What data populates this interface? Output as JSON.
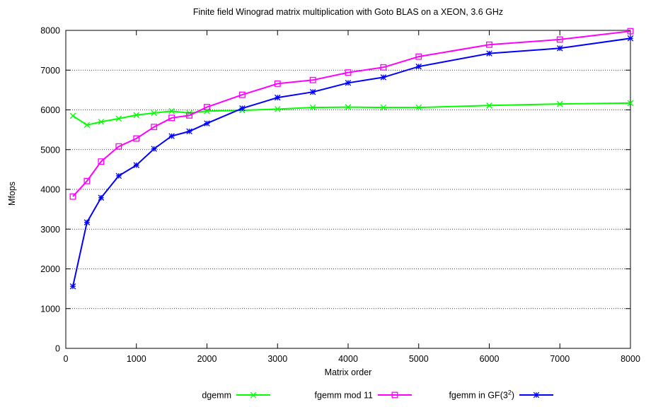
{
  "chart_data": {
    "type": "line",
    "title": "Finite field Winograd matrix multiplication with Goto BLAS on a XEON, 3.6 GHz",
    "xlabel": "Matrix order",
    "ylabel": "Mfops",
    "xlim": [
      0,
      8000
    ],
    "ylim": [
      0,
      8000
    ],
    "xticks": [
      0,
      1000,
      2000,
      3000,
      4000,
      5000,
      6000,
      7000,
      8000
    ],
    "yticks": [
      0,
      1000,
      2000,
      3000,
      4000,
      5000,
      6000,
      7000,
      8000
    ],
    "grid": true,
    "legend_position": "bottom",
    "series": [
      {
        "name": "dgemm",
        "color": "#00ff00",
        "marker": "x",
        "points": [
          [
            100,
            5850
          ],
          [
            300,
            5620
          ],
          [
            500,
            5700
          ],
          [
            750,
            5780
          ],
          [
            1000,
            5870
          ],
          [
            1250,
            5920
          ],
          [
            1500,
            5970
          ],
          [
            1750,
            5920
          ],
          [
            2000,
            5970
          ],
          [
            2500,
            5990
          ],
          [
            3000,
            6020
          ],
          [
            3500,
            6060
          ],
          [
            4000,
            6070
          ],
          [
            4500,
            6060
          ],
          [
            5000,
            6060
          ],
          [
            6000,
            6110
          ],
          [
            7000,
            6150
          ],
          [
            8000,
            6170
          ]
        ]
      },
      {
        "name": "fgemm mod 11",
        "color": "#ff00ff",
        "marker": "square",
        "points": [
          [
            100,
            3820
          ],
          [
            300,
            4210
          ],
          [
            500,
            4700
          ],
          [
            750,
            5080
          ],
          [
            1000,
            5280
          ],
          [
            1250,
            5570
          ],
          [
            1500,
            5800
          ],
          [
            1750,
            5860
          ],
          [
            2000,
            6070
          ],
          [
            2500,
            6380
          ],
          [
            3000,
            6660
          ],
          [
            3500,
            6750
          ],
          [
            4000,
            6940
          ],
          [
            4500,
            7070
          ],
          [
            5000,
            7340
          ],
          [
            6000,
            7640
          ],
          [
            7000,
            7770
          ],
          [
            8000,
            7980
          ]
        ]
      },
      {
        "name_prefix": "fgemm in GF(3",
        "name_sup": "2",
        "name_suffix": ")",
        "color": "#0000ff",
        "marker": "star",
        "points": [
          [
            100,
            1560
          ],
          [
            300,
            3170
          ],
          [
            500,
            3790
          ],
          [
            750,
            4340
          ],
          [
            1000,
            4610
          ],
          [
            1250,
            5020
          ],
          [
            1500,
            5340
          ],
          [
            1750,
            5460
          ],
          [
            2000,
            5660
          ],
          [
            2500,
            6040
          ],
          [
            3000,
            6310
          ],
          [
            3500,
            6450
          ],
          [
            4000,
            6680
          ],
          [
            4500,
            6820
          ],
          [
            5000,
            7090
          ],
          [
            6000,
            7420
          ],
          [
            7000,
            7550
          ],
          [
            8000,
            7800
          ]
        ]
      }
    ]
  }
}
